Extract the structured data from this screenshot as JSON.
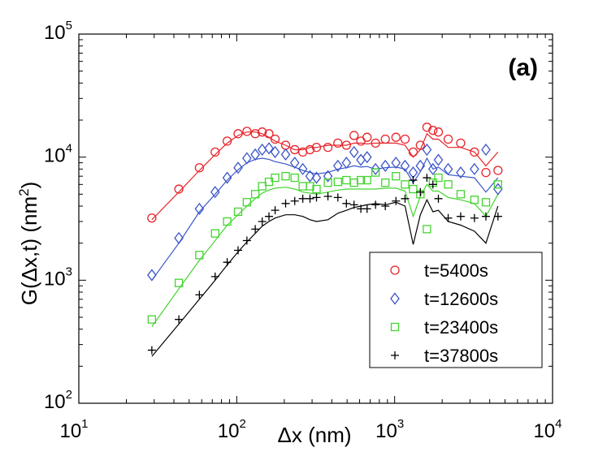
{
  "chart_data": {
    "type": "scatter",
    "panel_label": "(a)",
    "xlabel": "Δx (nm)",
    "ylabel_main": "G(Δx,t) (nm",
    "ylabel_sup": "2",
    "ylabel_close": ")",
    "x_scale": "log",
    "y_scale": "log",
    "xlim": [
      10,
      10000
    ],
    "ylim": [
      100,
      100000
    ],
    "x_ticks": [
      {
        "base": "10",
        "exp": "1",
        "value": 10
      },
      {
        "base": "10",
        "exp": "2",
        "value": 100
      },
      {
        "base": "10",
        "exp": "3",
        "value": 1000
      },
      {
        "base": "10",
        "exp": "4",
        "value": 10000
      }
    ],
    "y_ticks": [
      {
        "base": "10",
        "exp": "2",
        "value": 100
      },
      {
        "base": "10",
        "exp": "3",
        "value": 1000
      },
      {
        "base": "10",
        "exp": "4",
        "value": 10000
      },
      {
        "base": "10",
        "exp": "5",
        "value": 100000
      }
    ],
    "legend_position": "bottom-right",
    "series": [
      {
        "name": "t=5400s",
        "marker": "circle",
        "color": "#e8242a",
        "x": [
          29,
          43,
          58,
          73,
          87,
          102,
          116,
          131,
          145,
          160,
          175,
          204,
          233,
          262,
          291,
          320,
          378,
          437,
          495,
          553,
          611,
          669,
          757,
          873,
          1019,
          1164,
          1310,
          1455,
          1601,
          1747,
          1892,
          2183,
          2620,
          3202,
          3784,
          4512
        ],
        "values": [
          3200,
          5500,
          8200,
          11000,
          13500,
          15500,
          16200,
          15500,
          16000,
          15500,
          14000,
          12500,
          11500,
          11000,
          11500,
          12000,
          12000,
          13000,
          12500,
          15000,
          13500,
          14500,
          13000,
          14000,
          14500,
          14000,
          11000,
          12500,
          17500,
          16500,
          16000,
          14000,
          13000,
          11000,
          7500,
          7800
        ],
        "fit": [
          3100,
          5200,
          7800,
          10500,
          13000,
          15000,
          16000,
          16000,
          15500,
          14500,
          13500,
          12500,
          11500,
          11500,
          12000,
          12000,
          12500,
          12500,
          12500,
          13000,
          13000,
          12800,
          13000,
          13000,
          13000,
          12500,
          10000,
          11500,
          15500,
          14000,
          14000,
          12000,
          12000,
          11000,
          8500,
          11000
        ]
      },
      {
        "name": "t=12600s",
        "marker": "diamond",
        "color": "#3a55c8",
        "x": [
          29,
          43,
          58,
          73,
          87,
          102,
          116,
          131,
          145,
          160,
          175,
          204,
          233,
          262,
          291,
          320,
          378,
          437,
          495,
          553,
          611,
          669,
          757,
          873,
          1019,
          1164,
          1310,
          1455,
          1601,
          1747,
          1892,
          2183,
          2620,
          3202,
          3784,
          4512
        ],
        "values": [
          1100,
          2200,
          3800,
          5200,
          6800,
          8200,
          9800,
          10500,
          11500,
          11800,
          11000,
          10500,
          9000,
          8000,
          7000,
          6800,
          7000,
          8500,
          9000,
          11000,
          9500,
          10000,
          8000,
          8500,
          9000,
          8500,
          7500,
          8500,
          11500,
          8000,
          9500,
          8000,
          7500,
          8000,
          11500,
          5500
        ],
        "fit": [
          1000,
          2000,
          3600,
          5000,
          6500,
          7900,
          9000,
          9600,
          9800,
          9600,
          9200,
          8800,
          8300,
          7800,
          7500,
          7300,
          7500,
          8000,
          8200,
          8500,
          8300,
          8400,
          8000,
          8200,
          8300,
          8000,
          6200,
          7600,
          9800,
          8000,
          8300,
          7200,
          7000,
          6800,
          5200,
          6800
        ]
      },
      {
        "name": "t=23400s",
        "marker": "square",
        "color": "#44d430",
        "x": [
          29,
          43,
          58,
          73,
          87,
          102,
          116,
          131,
          145,
          160,
          175,
          204,
          233,
          262,
          291,
          320,
          378,
          437,
          495,
          553,
          611,
          669,
          757,
          873,
          1019,
          1164,
          1310,
          1455,
          1601,
          1747,
          1892,
          2183,
          2620,
          3202,
          3784,
          4512
        ],
        "values": [
          480,
          950,
          1600,
          2400,
          3000,
          3600,
          4300,
          5000,
          5800,
          6300,
          6800,
          7000,
          6800,
          5800,
          5800,
          5500,
          6200,
          6300,
          6500,
          6200,
          6500,
          6500,
          7500,
          6200,
          7000,
          6000,
          5500,
          5000,
          2600,
          6200,
          6800,
          6000,
          5000,
          4500,
          4300,
          6000
        ],
        "fit": [
          420,
          850,
          1450,
          2100,
          2800,
          3400,
          4000,
          4600,
          5100,
          5400,
          5600,
          5700,
          5500,
          5200,
          5100,
          5000,
          5200,
          5400,
          5500,
          5500,
          5500,
          5500,
          5500,
          5600,
          5600,
          5300,
          3300,
          4800,
          6000,
          5300,
          5300,
          4700,
          4500,
          4200,
          3300,
          5000
        ]
      },
      {
        "name": "t=37800s",
        "marker": "plus",
        "color": "#000000",
        "x": [
          29,
          43,
          58,
          73,
          87,
          102,
          116,
          131,
          145,
          160,
          175,
          204,
          233,
          262,
          291,
          320,
          378,
          437,
          495,
          553,
          611,
          669,
          757,
          873,
          1019,
          1164,
          1310,
          1455,
          1601,
          1747,
          1892,
          2183,
          2620,
          3202,
          3784,
          4512
        ],
        "values": [
          270,
          480,
          760,
          1070,
          1400,
          1750,
          2100,
          2600,
          3000,
          3300,
          3700,
          4200,
          4400,
          4600,
          4600,
          4700,
          4800,
          4700,
          4200,
          4100,
          3800,
          3800,
          4100,
          4000,
          4400,
          4600,
          6500,
          5200,
          6800,
          6000,
          4600,
          3200,
          3300,
          3200,
          3300,
          3300
        ],
        "fit": [
          240,
          440,
          700,
          1000,
          1330,
          1700,
          2050,
          2400,
          2750,
          3000,
          3200,
          3400,
          3400,
          3300,
          3100,
          3000,
          3100,
          3500,
          3700,
          3900,
          4000,
          4100,
          4200,
          4100,
          4300,
          4000,
          1950,
          3400,
          4500,
          3600,
          3700,
          3000,
          2800,
          2500,
          2000,
          4000
        ]
      }
    ]
  }
}
